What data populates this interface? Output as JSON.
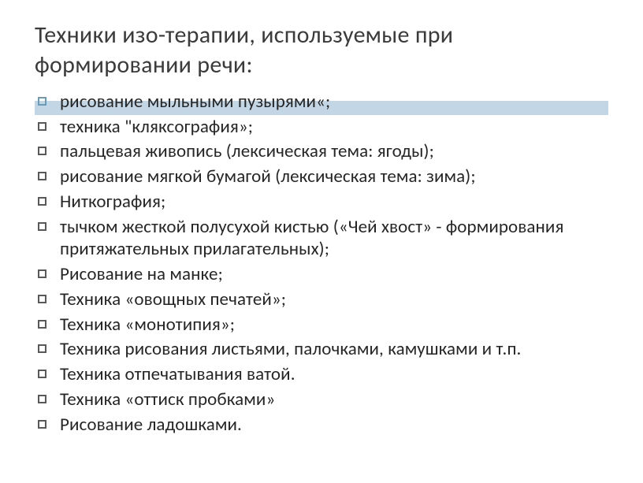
{
  "title": "Техники изо-терапии, используемые при формировании речи:",
  "accent_color": "#c3d6e6",
  "first_bullet_color": "#6a9cba",
  "bullet_color": "#595959",
  "text_color": "#262626",
  "title_color": "#3b3b3b",
  "title_fontsize": 30,
  "item_fontsize": 23,
  "items": [
    "рисование мыльными пузырями«;",
    "техника \"кляксография»;",
    "пальцевая живопись (лексическая тема: ягоды);",
    "рисование мягкой бумагой (лексическая тема: зима);",
    "Ниткография;",
    "тычком жесткой полусухой кистью («Чей хвост» - формирования притяжательных прилагательных);",
    "Рисование на манке;",
    "Техника «овощных печатей»;",
    "Техника «монотипия»;",
    "Техника рисования листьями, палочками, камушками и т.п.",
    "Техника отпечатывания ватой.",
    "Техника «оттиск пробками»",
    "Рисование ладошками."
  ]
}
